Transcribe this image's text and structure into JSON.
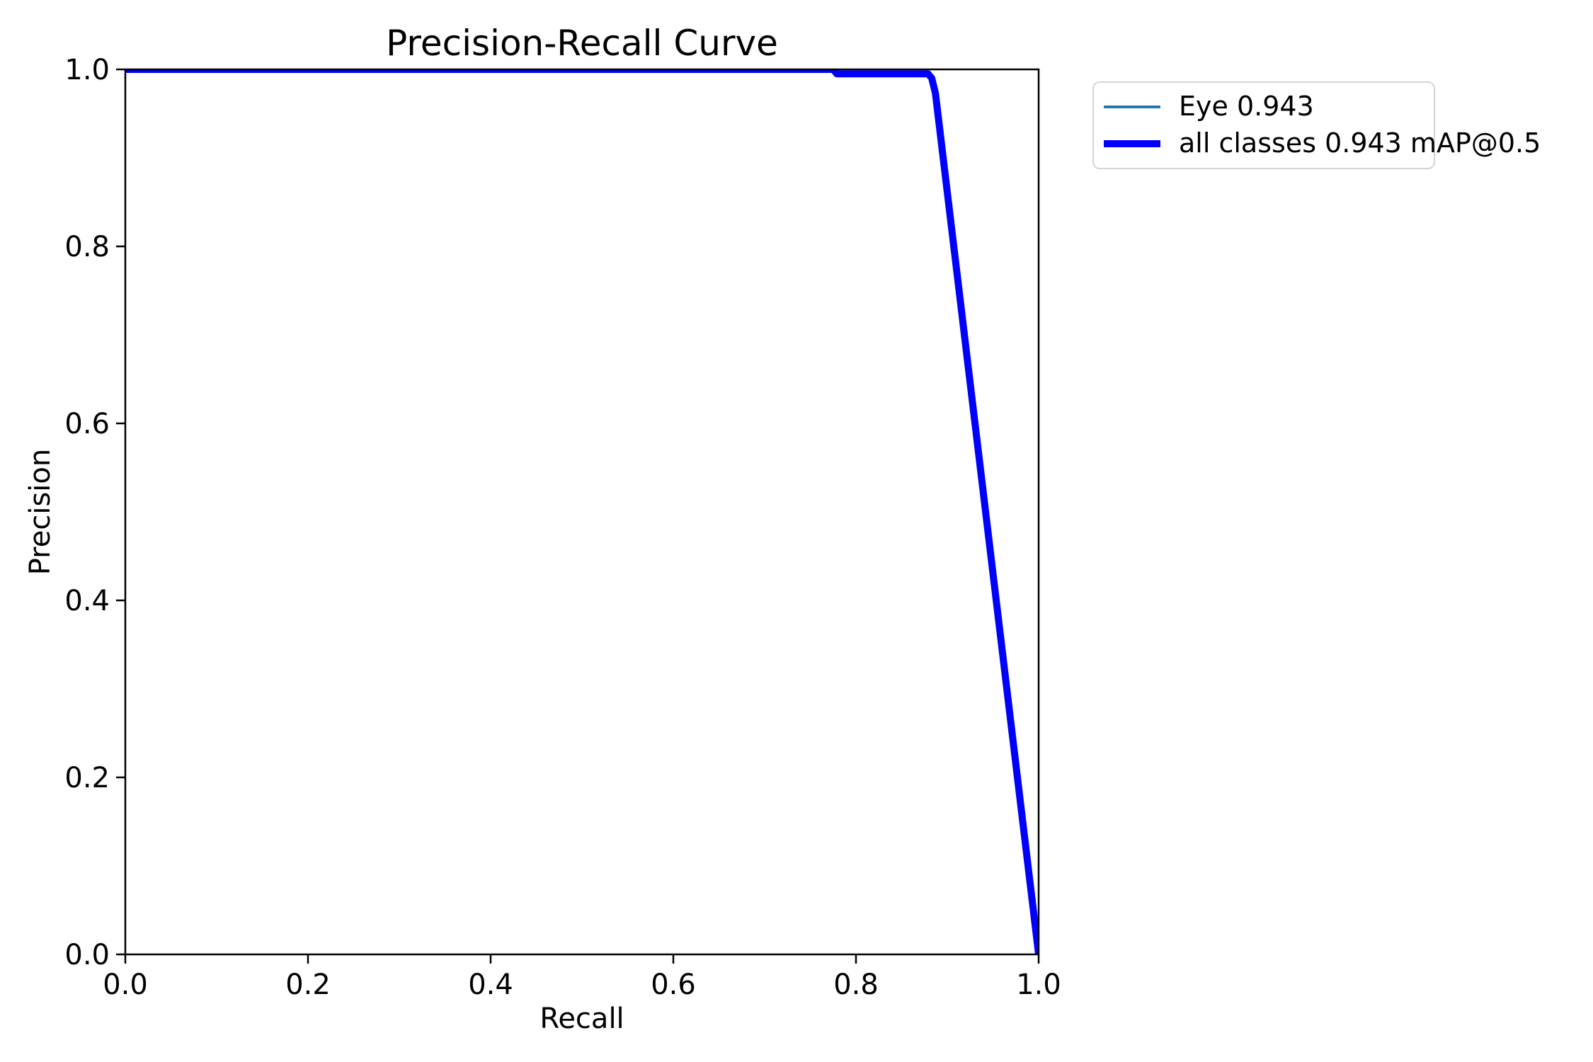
{
  "chart_data": {
    "type": "line",
    "title": "Precision-Recall Curve",
    "xlabel": "Recall",
    "ylabel": "Precision",
    "xlim": [
      0.0,
      1.0
    ],
    "ylim": [
      0.0,
      1.0
    ],
    "x_ticks": [
      "0.0",
      "0.2",
      "0.4",
      "0.6",
      "0.8",
      "1.0"
    ],
    "y_ticks": [
      "1.0",
      "0.8",
      "0.6",
      "0.4",
      "0.2",
      "0.0"
    ],
    "grid": false,
    "legend_position": "outside-upper-right",
    "series": [
      {
        "name": "Eye",
        "label": "Eye 0.943",
        "ap": 0.943,
        "color": "#1f77b4",
        "linewidth": "thin",
        "points": [
          [
            0.0,
            1.0
          ],
          [
            0.775,
            1.0
          ],
          [
            0.779,
            0.995
          ],
          [
            0.879,
            0.995
          ],
          [
            0.883,
            0.99
          ],
          [
            0.887,
            0.973
          ],
          [
            1.0,
            0.0
          ]
        ]
      },
      {
        "name": "all classes",
        "label": "all classes 0.943 mAP@0.5",
        "map_at_0_5": 0.943,
        "color": "#0000ff",
        "linewidth": "thick",
        "points": [
          [
            0.0,
            1.0
          ],
          [
            0.775,
            1.0
          ],
          [
            0.779,
            0.995
          ],
          [
            0.879,
            0.995
          ],
          [
            0.883,
            0.99
          ],
          [
            0.887,
            0.973
          ],
          [
            1.0,
            0.0
          ]
        ]
      }
    ]
  },
  "legend": {
    "items": [
      {
        "label": "Eye 0.943",
        "color": "#1f77b4",
        "thickness": "thin"
      },
      {
        "label": "all classes 0.943 mAP@0.5",
        "color": "#0000ff",
        "thickness": "thick"
      }
    ]
  }
}
